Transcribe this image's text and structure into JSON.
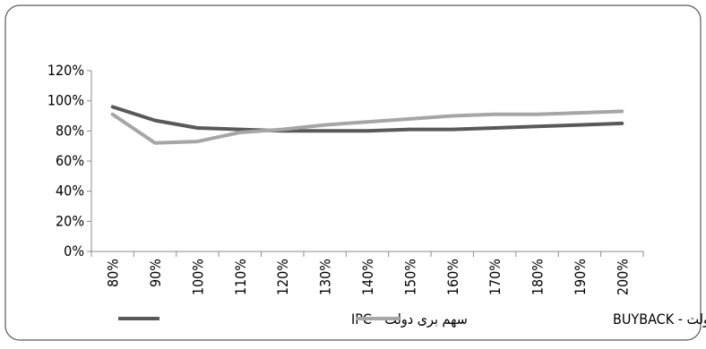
{
  "chart_data": {
    "type": "line",
    "title": "",
    "xlabel": "",
    "ylabel": "",
    "categories": [
      "80%",
      "90%",
      "100%",
      "110%",
      "120%",
      "130%",
      "140%",
      "150%",
      "160%",
      "170%",
      "180%",
      "190%",
      "200%"
    ],
    "y_ticks": [
      "0%",
      "20%",
      "40%",
      "60%",
      "80%",
      "100%",
      "120%"
    ],
    "ylim": [
      0,
      120
    ],
    "grid": false,
    "legend_position": "bottom",
    "series": [
      {
        "name": "سهم بری دولت - IPC",
        "color": "#595959",
        "values": [
          96,
          87,
          82,
          81,
          80,
          80,
          80,
          81,
          81,
          82,
          83,
          84,
          85
        ]
      },
      {
        "name": "سهم بری دولت - BUYBACK",
        "color": "#a6a6a6",
        "values": [
          91,
          72,
          73,
          79,
          81,
          84,
          86,
          88,
          90,
          91,
          91,
          92,
          93
        ]
      }
    ]
  }
}
